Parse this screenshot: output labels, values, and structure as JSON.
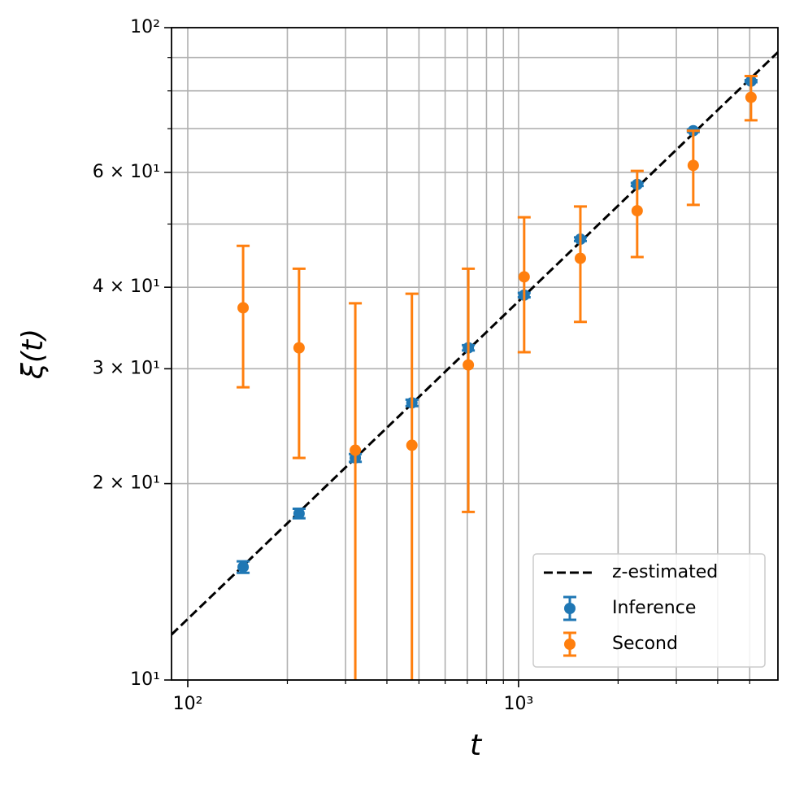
{
  "chart_data": {
    "type": "errorbar",
    "xlabel": "t",
    "ylabel": "ξ(t)",
    "xscale": "log",
    "yscale": "log",
    "grid": true,
    "legend": "lower right",
    "xlim": [
      89.3,
      6085
    ],
    "ylim": [
      10,
      100
    ],
    "xticks": [
      {
        "value": 100,
        "label": "10²"
      },
      {
        "value": 1000,
        "label": "10³"
      }
    ],
    "xminor": [
      200,
      300,
      400,
      500,
      600,
      700,
      800,
      900,
      2000,
      3000,
      4000,
      5000
    ],
    "yticks": [
      {
        "value": 10,
        "label": "10¹"
      },
      {
        "value": 20,
        "label": "2 × 10¹"
      },
      {
        "value": 30,
        "label": "3 × 10¹"
      },
      {
        "value": 40,
        "label": "4 × 10¹"
      },
      {
        "value": 60,
        "label": "6 × 10¹"
      },
      {
        "value": 100,
        "label": "10²"
      }
    ],
    "yminor": [
      50,
      70,
      80,
      90
    ],
    "series": [
      {
        "name": "z-estimated",
        "color": "#000000",
        "style": "dashed",
        "x": [
          89.3,
          6085
        ],
        "values": [
          11.74,
          91.7
        ]
      },
      {
        "name": "Inference",
        "color": "#1f77b4",
        "style": "errorbar",
        "x": [
          147,
          217,
          321,
          476,
          705,
          1040,
          1538,
          2284,
          3375,
          5045
        ],
        "values": [
          14.9,
          18.0,
          21.9,
          26.6,
          32.3,
          38.9,
          47.4,
          57.5,
          69.5,
          82.8
        ],
        "errors": [
          0.3,
          0.3,
          0.3,
          0.3,
          0.3,
          0.3,
          0.3,
          0.3,
          0.3,
          0.3
        ]
      },
      {
        "name": "Second",
        "color": "#ff7f0e",
        "style": "errorbar",
        "x": [
          147,
          217,
          321,
          476,
          705,
          1040,
          1538,
          2284,
          3375,
          5045
        ],
        "values": [
          37.2,
          32.3,
          22.5,
          22.9,
          30.4,
          41.5,
          44.3,
          52.4,
          61.5,
          78.2
        ],
        "errors": [
          9.1,
          10.4,
          15.3,
          16.2,
          12.3,
          9.7,
          8.9,
          7.9,
          8.0,
          6.1
        ]
      }
    ]
  }
}
